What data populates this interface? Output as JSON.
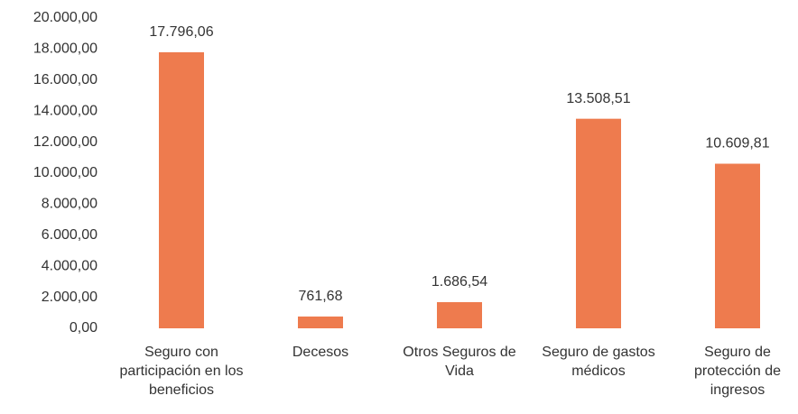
{
  "chart_data": {
    "type": "bar",
    "categories": [
      "Seguro con participación en los beneficios",
      "Decesos",
      "Otros Seguros de Vida",
      "Seguro de gastos médicos",
      "Seguro de protección de ingresos"
    ],
    "values": [
      17796.06,
      761.68,
      1686.54,
      13508.51,
      10609.81
    ],
    "value_labels": [
      "17.796,06",
      "761,68",
      "1.686,54",
      "13.508,51",
      "10.609,81"
    ],
    "color": "#ee7b4e",
    "ylim": [
      0,
      20000
    ],
    "yticks": [
      {
        "value": 0,
        "label": "0,00"
      },
      {
        "value": 2000,
        "label": "2.000,00"
      },
      {
        "value": 4000,
        "label": "4.000,00"
      },
      {
        "value": 6000,
        "label": "6.000,00"
      },
      {
        "value": 8000,
        "label": "8.000,00"
      },
      {
        "value": 10000,
        "label": "10.000,00"
      },
      {
        "value": 12000,
        "label": "12.000,00"
      },
      {
        "value": 14000,
        "label": "14.000,00"
      },
      {
        "value": 16000,
        "label": "16.000,00"
      },
      {
        "value": 18000,
        "label": "18.000,00"
      },
      {
        "value": 20000,
        "label": "20.000,00"
      }
    ],
    "grid": false
  }
}
